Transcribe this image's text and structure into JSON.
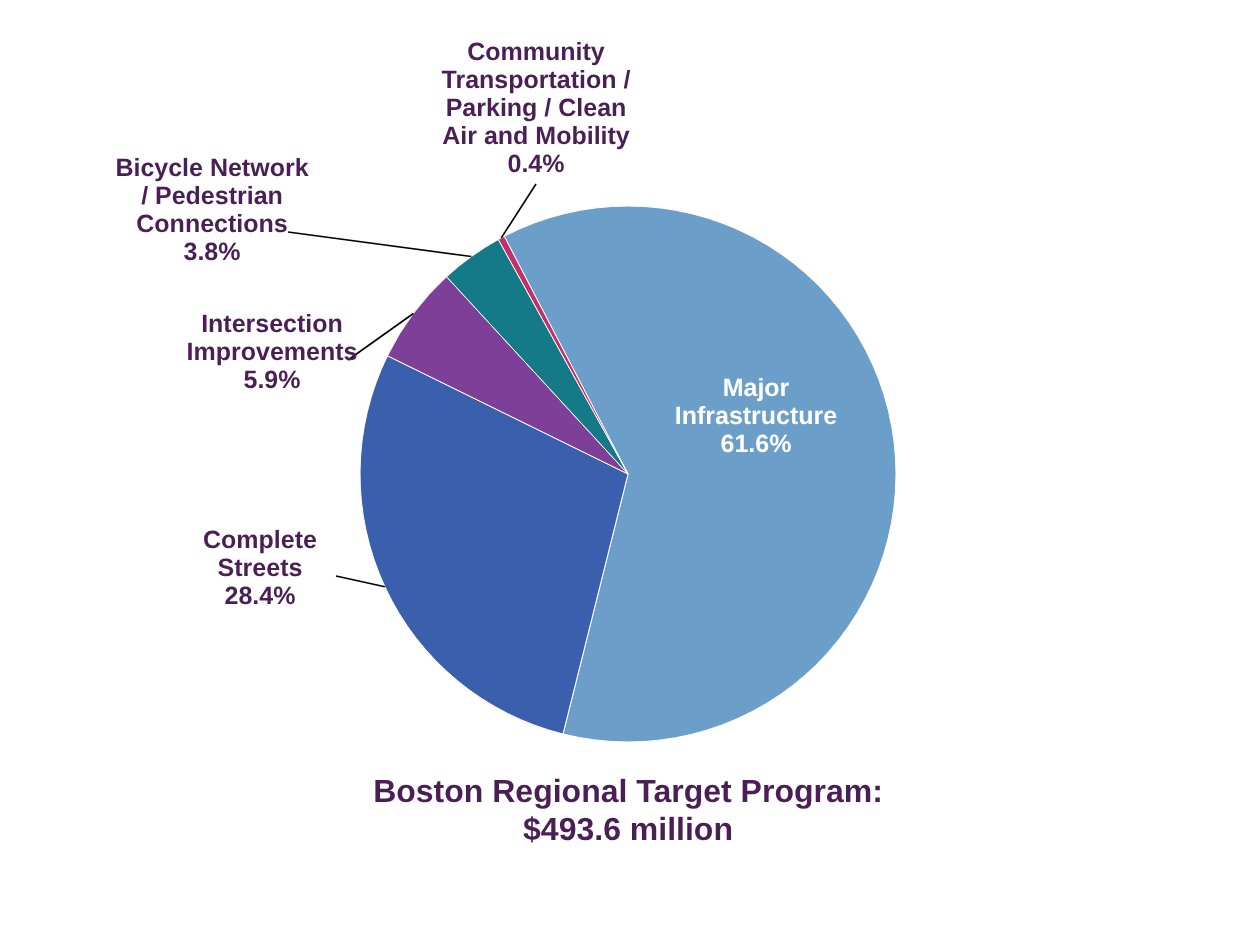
{
  "chart_data": {
    "type": "pie",
    "title": "Boston Regional Target Program:\n$493.6 million",
    "categories": [
      "Major Infrastructure",
      "Complete Streets",
      "Intersection Improvements",
      "Bicycle Network / Pedestrian Connections",
      "Community Transportation / Parking / Clean Air and Mobility"
    ],
    "values": [
      61.6,
      28.4,
      5.9,
      3.8,
      0.4
    ],
    "value_labels": [
      "61.6%",
      "28.4%",
      "5.9%",
      "3.8%",
      "0.4%"
    ],
    "colors": [
      "#6b9ec8",
      "#3a5fad",
      "#7d3f98",
      "#157a88",
      "#c0306a"
    ]
  }
}
